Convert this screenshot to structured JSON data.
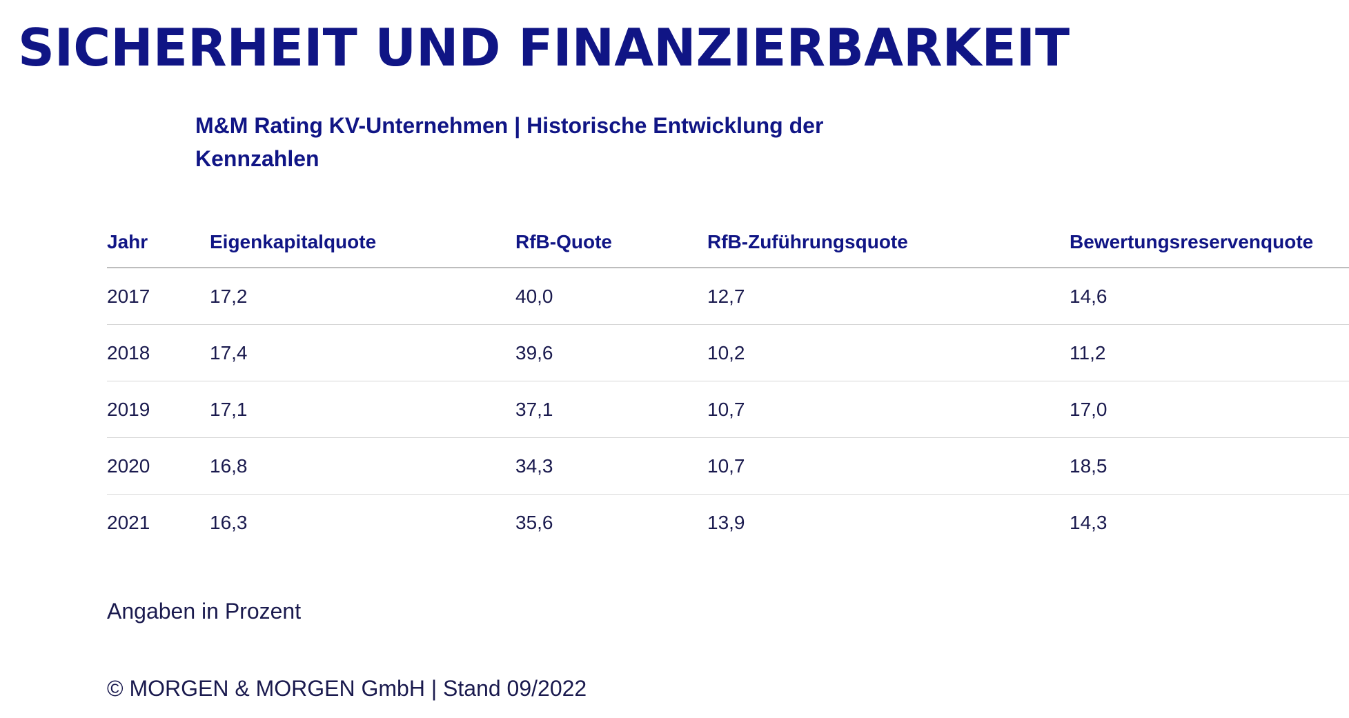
{
  "heading": "SICHERHEIT UND FINANZIERBARKEIT",
  "table_title": "M&M Rating KV-Unternehmen | Historische Entwicklung der Kennzahlen",
  "table": {
    "headers": [
      "Jahr",
      "Eigenkapitalquote",
      "RfB-Quote",
      "RfB-Zuführungsquote",
      "Bewertungsreservenquote"
    ],
    "rows": [
      [
        "2017",
        "17,2",
        "40,0",
        "12,7",
        "14,6"
      ],
      [
        "2018",
        "17,4",
        "39,6",
        "10,2",
        "11,2"
      ],
      [
        "2019",
        "17,1",
        "37,1",
        "10,7",
        "17,0"
      ],
      [
        "2020",
        "16,8",
        "34,3",
        "10,7",
        "18,5"
      ],
      [
        "2021",
        "16,3",
        "35,6",
        "13,9",
        "14,3"
      ]
    ]
  },
  "unit_note": "Angaben in Prozent",
  "footer": "© MORGEN & MORGEN GmbH | Stand 09/2022"
}
